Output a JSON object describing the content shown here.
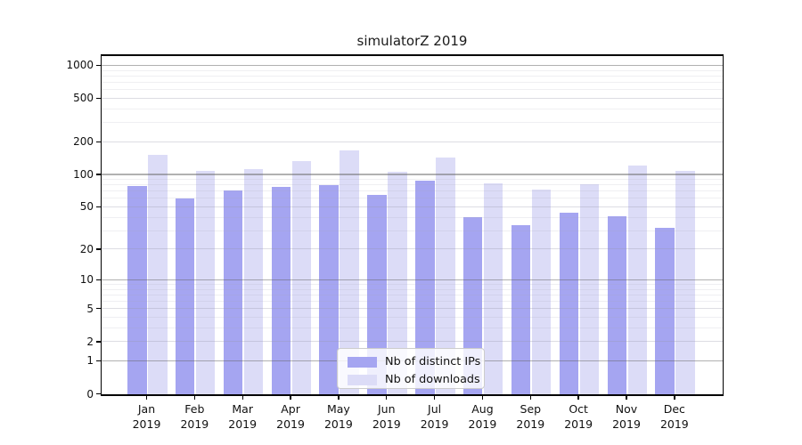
{
  "figure": {
    "kind": "static-chart-image",
    "background": "#ffffff"
  },
  "chart_data": {
    "type": "bar",
    "title": "simulatorZ 2019",
    "categories": [
      "Jan 2019",
      "Feb 2019",
      "Mar 2019",
      "Apr 2019",
      "May 2019",
      "Jun 2019",
      "Jul 2019",
      "Aug 2019",
      "Sep 2019",
      "Oct 2019",
      "Nov 2019",
      "Dec 2019"
    ],
    "series": [
      {
        "name": "Nb of distinct IPs",
        "color": "#a5a5f1",
        "values": [
          78,
          60,
          71,
          77,
          80,
          65,
          87,
          40,
          34,
          44,
          41,
          32
        ]
      },
      {
        "name": "Nb of downloads",
        "color": "#dcdcf7",
        "values": [
          151,
          108,
          113,
          133,
          165,
          106,
          144,
          82,
          73,
          81,
          121,
          108
        ]
      }
    ],
    "xlabel": "",
    "ylabel": "",
    "yscale": "log1p",
    "ylim": [
      0,
      1260
    ],
    "yticks": [
      0,
      1,
      2,
      5,
      10,
      20,
      50,
      100,
      200,
      500,
      1000
    ],
    "decade_gridlines": [
      1,
      10,
      100,
      1000
    ],
    "minor_gridlines": [
      3,
      4,
      6,
      7,
      8,
      9,
      30,
      40,
      60,
      70,
      80,
      90,
      300,
      400,
      600,
      700,
      800,
      900
    ],
    "grid": "on",
    "legend_position": "lower center"
  },
  "colors": {
    "bar_distinct_ips": "#a5a5f1",
    "bar_downloads": "#dcdcf7",
    "grid_decade": "#b1b1b1",
    "grid_light": "#e5e5e9",
    "axis": "#000000",
    "legend_border": "#cccccc"
  }
}
